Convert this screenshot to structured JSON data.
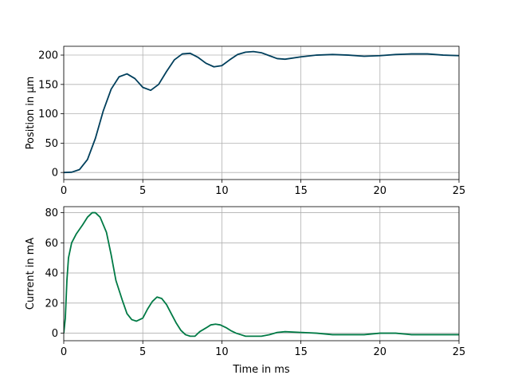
{
  "chart_data": [
    {
      "type": "line",
      "title": "",
      "xlabel": "",
      "ylabel": "Position in µm",
      "xlim": [
        0,
        25
      ],
      "ylim": [
        -12,
        215
      ],
      "xticks": [
        0,
        5,
        10,
        15,
        20,
        25
      ],
      "yticks": [
        0,
        50,
        100,
        150,
        200
      ],
      "grid": true,
      "series": [
        {
          "color": "#003f5c",
          "x": [
            0,
            0.5,
            1,
            1.5,
            2,
            2.5,
            3,
            3.5,
            4,
            4.5,
            5,
            5.5,
            6,
            6.5,
            7,
            7.5,
            8,
            8.5,
            9,
            9.5,
            10,
            10.5,
            11,
            11.5,
            12,
            12.5,
            13,
            13.5,
            14,
            15,
            16,
            17,
            18,
            19,
            20,
            21,
            22,
            23,
            24,
            25
          ],
          "y": [
            0,
            0.5,
            5,
            22,
            58,
            105,
            142,
            163,
            168,
            160,
            145,
            140,
            150,
            172,
            192,
            202,
            203,
            196,
            186,
            180,
            182,
            192,
            201,
            205,
            206,
            204,
            199,
            194,
            193,
            197,
            200,
            201,
            200,
            198,
            199,
            201,
            202,
            202,
            200,
            199
          ]
        }
      ]
    },
    {
      "type": "line",
      "title": "",
      "xlabel": "Time in ms",
      "ylabel": "Current in mA",
      "xlim": [
        0,
        25
      ],
      "ylim": [
        -5,
        84
      ],
      "xticks": [
        0,
        5,
        10,
        15,
        20,
        25
      ],
      "yticks": [
        0,
        20,
        40,
        60,
        80
      ],
      "grid": true,
      "series": [
        {
          "color": "#007a45",
          "x": [
            0,
            0.1,
            0.2,
            0.3,
            0.5,
            0.8,
            1.2,
            1.5,
            1.8,
            2.0,
            2.3,
            2.7,
            3.0,
            3.3,
            3.7,
            4.0,
            4.3,
            4.6,
            5.0,
            5.3,
            5.6,
            5.9,
            6.2,
            6.5,
            6.8,
            7.1,
            7.4,
            7.7,
            8.0,
            8.3,
            8.6,
            9.0,
            9.3,
            9.6,
            9.9,
            10.3,
            10.6,
            10.9,
            11.2,
            11.5,
            12.0,
            12.5,
            13.0,
            13.5,
            14.0,
            15.0,
            16.0,
            17.0,
            18.0,
            19.0,
            20.0,
            21.0,
            22.0,
            23.0,
            24.0,
            25.0
          ],
          "y": [
            0,
            10,
            35,
            50,
            60,
            66,
            72,
            77,
            80,
            80,
            77,
            67,
            52,
            35,
            22,
            13,
            9,
            8,
            10,
            16,
            21,
            24,
            23,
            19,
            13,
            7,
            2,
            -1,
            -2,
            -2,
            1,
            3.5,
            5.5,
            6,
            5.5,
            3.5,
            1.5,
            0,
            -1,
            -2,
            -2,
            -2,
            -1,
            0.5,
            1,
            0.5,
            0,
            -1,
            -1,
            -1,
            0,
            0,
            -1,
            -1,
            -1,
            -1
          ]
        }
      ]
    }
  ]
}
